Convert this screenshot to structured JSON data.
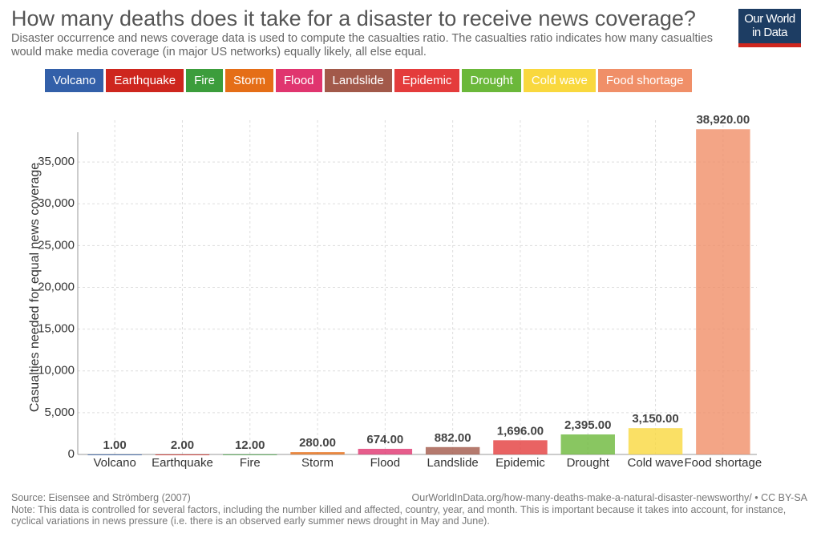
{
  "chart_data": {
    "type": "bar",
    "title": "How many deaths does it take for a disaster to receive news coverage?",
    "subtitle": "Disaster occurrence and news coverage data is used to compute the casualties ratio. The casualties ratio indicates how many casualties would make media coverage (in major US networks) equally likely, all else equal.",
    "logo": [
      "Our World",
      "in Data"
    ],
    "y_label": "Casualties needed for equal news coverage",
    "categories": [
      "Volcano",
      "Earthquake",
      "Fire",
      "Storm",
      "Flood",
      "Landslide",
      "Epidemic",
      "Drought",
      "Cold wave",
      "Food shortage"
    ],
    "values": [
      1,
      2,
      12,
      280,
      674,
      882,
      1696,
      2395,
      3150,
      38920
    ],
    "value_labels": [
      "1.00",
      "2.00",
      "12.00",
      "280.00",
      "674.00",
      "882.00",
      "1,696.00",
      "2,395.00",
      "3,150.00",
      "38,920.00"
    ],
    "colors": [
      "#3360a9",
      "#ce261e",
      "#3c9d3c",
      "#e56e17",
      "#e0356f",
      "#a2594a",
      "#e43c3c",
      "#6bb83a",
      "#f9d83e",
      "#f08f68"
    ],
    "ylim": [
      0,
      40000
    ],
    "yticks": [
      0,
      {
        "value": 5000,
        "label": "5,000"
      },
      {
        "value": 10000,
        "label": "10,000"
      },
      {
        "value": 15000,
        "label": "15,000"
      },
      {
        "value": 20000,
        "label": "20,000"
      },
      {
        "value": 25000,
        "label": "25,000"
      },
      {
        "value": 30000,
        "label": "30,000"
      },
      {
        "value": 35000,
        "label": "35,000"
      }
    ],
    "grid": true,
    "source": "Source: Eisensee and Strömberg (2007)",
    "url": "OurWorldInData.org/how-many-deaths-make-a-natural-disaster-newsworthy/ • CC BY-SA",
    "note": "Note: This data is controlled for several factors, including the number killed and affected, country, year, and month. This is important because it takes into account, for instance, cyclical variations in news pressure (i.e. there is an observed early summer news drought in May and June)."
  }
}
